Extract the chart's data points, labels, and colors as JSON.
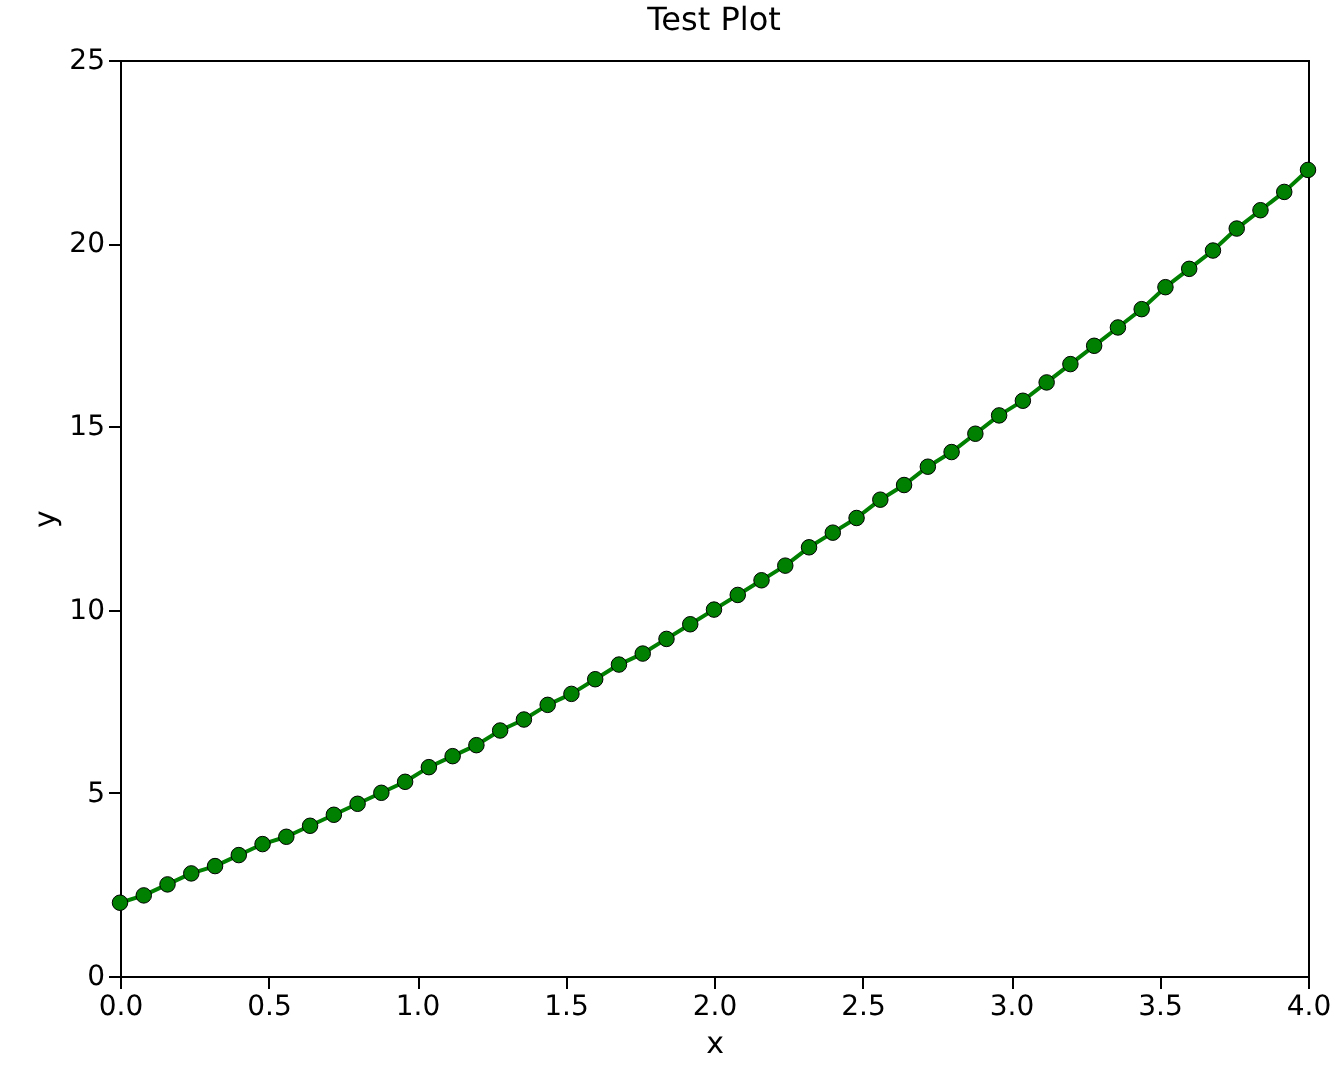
{
  "chart_data": {
    "type": "line",
    "title": "Test Plot",
    "xlabel": "x",
    "ylabel": "y",
    "x": [
      0,
      0.08,
      0.16,
      0.24,
      0.32,
      0.4,
      0.48,
      0.56,
      0.64,
      0.72,
      0.8,
      0.88,
      0.96,
      1.04,
      1.12,
      1.2,
      1.28,
      1.36,
      1.44,
      1.52,
      1.6,
      1.68,
      1.76,
      1.84,
      1.92,
      2,
      2.08,
      2.16,
      2.24,
      2.32,
      2.4,
      2.48,
      2.56,
      2.64,
      2.72,
      2.8,
      2.88,
      2.96,
      3.04,
      3.12,
      3.2,
      3.28,
      3.36,
      3.44,
      3.52,
      3.6,
      3.68,
      3.76,
      3.84,
      3.92,
      4
    ],
    "series": [
      {
        "color": "#008000",
        "values": [
          2.0,
          2.2,
          2.5,
          2.8,
          3.0,
          3.3,
          3.6,
          3.8,
          4.1,
          4.4,
          4.7,
          5.0,
          5.3,
          5.7,
          6.0,
          6.3,
          6.7,
          7.0,
          7.4,
          7.7,
          8.1,
          8.5,
          8.8,
          9.2,
          9.6,
          10.0,
          10.4,
          10.8,
          11.2,
          11.7,
          12.1,
          12.5,
          13.0,
          13.4,
          13.9,
          14.3,
          14.8,
          15.3,
          15.7,
          16.2,
          16.7,
          17.2,
          17.7,
          18.2,
          18.8,
          19.3,
          19.8,
          20.4,
          20.9,
          21.4,
          22.0
        ]
      }
    ],
    "marker": "circle",
    "line_style": "solid",
    "xlim": [
      0,
      4
    ],
    "xticks": [
      {
        "value": 0,
        "label": "0.0"
      },
      {
        "value": 0.5,
        "label": "0.5"
      },
      {
        "value": 1,
        "label": "1.0"
      },
      {
        "value": 1.5,
        "label": "1.5"
      },
      {
        "value": 2,
        "label": "2.0"
      },
      {
        "value": 2.5,
        "label": "2.5"
      },
      {
        "value": 3,
        "label": "3.0"
      },
      {
        "value": 3.5,
        "label": "3.5"
      },
      {
        "value": 4,
        "label": "4.0"
      }
    ],
    "ylim": [
      0,
      25
    ],
    "yticks": [
      0,
      5,
      10,
      15,
      20,
      25
    ]
  }
}
